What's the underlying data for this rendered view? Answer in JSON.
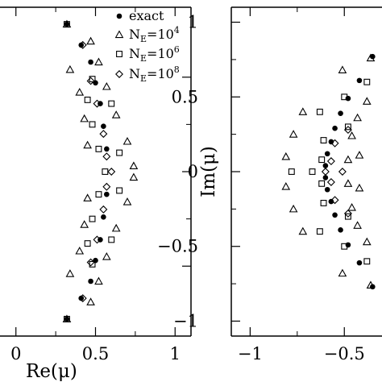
{
  "chart_data": [
    {
      "type": "scatter",
      "xlabel": "Re(μ)",
      "ylabel": "",
      "xlim": [
        -0.1,
        1.1
      ],
      "ylim": [
        -0.87,
        0.87
      ],
      "xticks": [
        {
          "value": 0,
          "label": "0"
        },
        {
          "value": 0.5,
          "label": "0.5"
        },
        {
          "value": 1,
          "label": "1"
        }
      ],
      "legend": {
        "position": "top-right",
        "entries": [
          {
            "marker": "filled-circle",
            "label": "exact"
          },
          {
            "marker": "open-triangle",
            "label": "N",
            "sub": "E",
            "eq": "=10",
            "sup": "4"
          },
          {
            "marker": "open-square",
            "label": "N",
            "sub": "E",
            "eq": "=10",
            "sup": "6"
          },
          {
            "marker": "open-diamond",
            "label": "N",
            "sub": "E",
            "eq": "=10",
            "sup": "8"
          }
        ]
      },
      "series": [
        {
          "marker": "filled-circle",
          "points": [
            [
              0.32,
              0.78
            ],
            [
              0.32,
              -0.78
            ],
            [
              0.41,
              0.67
            ],
            [
              0.41,
              -0.67
            ],
            [
              0.47,
              0.58
            ],
            [
              0.47,
              -0.58
            ],
            [
              0.5,
              0.47
            ],
            [
              0.5,
              -0.47
            ],
            [
              0.53,
              0.36
            ],
            [
              0.53,
              -0.36
            ],
            [
              0.55,
              0.24
            ],
            [
              0.55,
              -0.24
            ],
            [
              0.57,
              0.12
            ],
            [
              0.57,
              -0.12
            ]
          ]
        },
        {
          "marker": "open-triangle",
          "points": [
            [
              0.32,
              0.78
            ],
            [
              0.32,
              -0.78
            ],
            [
              0.34,
              0.54
            ],
            [
              0.34,
              -0.54
            ],
            [
              0.4,
              0.42
            ],
            [
              0.4,
              -0.42
            ],
            [
              0.43,
              0.28
            ],
            [
              0.43,
              -0.28
            ],
            [
              0.45,
              0.14
            ],
            [
              0.45,
              -0.14
            ],
            [
              0.47,
              0.69
            ],
            [
              0.47,
              -0.69
            ],
            [
              0.52,
              0.58
            ],
            [
              0.52,
              -0.58
            ],
            [
              0.57,
              0.45
            ],
            [
              0.57,
              -0.45
            ],
            [
              0.63,
              0.3
            ],
            [
              0.63,
              -0.3
            ],
            [
              0.7,
              0.16
            ],
            [
              0.7,
              -0.16
            ],
            [
              0.74,
              0.03
            ],
            [
              0.74,
              -0.03
            ]
          ]
        },
        {
          "marker": "open-square",
          "points": [
            [
              0.32,
              0.78
            ],
            [
              0.32,
              -0.78
            ],
            [
              0.48,
              0.49
            ],
            [
              0.48,
              -0.49
            ],
            [
              0.45,
              0.38
            ],
            [
              0.45,
              -0.38
            ],
            [
              0.48,
              0.25
            ],
            [
              0.48,
              -0.25
            ],
            [
              0.52,
              0.12
            ],
            [
              0.52,
              -0.12
            ],
            [
              0.56,
              0.0
            ],
            [
              0.6,
              0.36
            ],
            [
              0.6,
              -0.36
            ],
            [
              0.65,
              0.1
            ],
            [
              0.65,
              -0.1
            ]
          ]
        },
        {
          "marker": "open-diamond",
          "points": [
            [
              0.42,
              0.67
            ],
            [
              0.42,
              -0.67
            ],
            [
              0.47,
              0.48
            ],
            [
              0.47,
              -0.48
            ],
            [
              0.51,
              0.36
            ],
            [
              0.51,
              -0.36
            ],
            [
              0.55,
              0.2
            ],
            [
              0.55,
              -0.2
            ],
            [
              0.57,
              0.08
            ],
            [
              0.57,
              -0.08
            ],
            [
              0.6,
              0.0
            ]
          ]
        }
      ]
    },
    {
      "type": "scatter",
      "xlabel": "",
      "ylabel": "Im(μ)",
      "xlim": [
        -1.1,
        -0.3
      ],
      "ylim": [
        -1.1,
        1.1
      ],
      "xticks": [
        {
          "value": -1,
          "label": "−1"
        },
        {
          "value": -0.5,
          "label": "−0.5"
        }
      ],
      "yticks": [
        {
          "value": 1,
          "label": "1"
        },
        {
          "value": 0.5,
          "label": "0.5"
        },
        {
          "value": 0,
          "label": "0"
        },
        {
          "value": -0.5,
          "label": "−0.5"
        },
        {
          "value": -1,
          "label": "−1"
        }
      ],
      "series": [
        {
          "marker": "filled-circle",
          "points": [
            [
              -0.35,
              0.77
            ],
            [
              -0.35,
              -0.77
            ],
            [
              -0.42,
              0.61
            ],
            [
              -0.42,
              -0.61
            ],
            [
              -0.48,
              0.49
            ],
            [
              -0.48,
              -0.49
            ],
            [
              -0.52,
              0.39
            ],
            [
              -0.52,
              -0.39
            ],
            [
              -0.55,
              0.29
            ],
            [
              -0.55,
              -0.29
            ],
            [
              -0.57,
              0.2
            ],
            [
              -0.57,
              -0.2
            ],
            [
              -0.59,
              0.12
            ],
            [
              -0.59,
              -0.12
            ],
            [
              -0.6,
              0.04
            ],
            [
              -0.6,
              -0.04
            ]
          ]
        },
        {
          "marker": "open-triangle",
          "points": [
            [
              -0.36,
              0.76
            ],
            [
              -0.36,
              -0.76
            ],
            [
              -0.38,
              0.47
            ],
            [
              -0.38,
              -0.47
            ],
            [
              -0.43,
              0.36
            ],
            [
              -0.43,
              -0.36
            ],
            [
              -0.46,
              0.24
            ],
            [
              -0.46,
              -0.24
            ],
            [
              -0.48,
              0.08
            ],
            [
              -0.48,
              -0.08
            ],
            [
              -0.51,
              0.68
            ],
            [
              -0.51,
              -0.68
            ],
            [
              -0.72,
              0.4
            ],
            [
              -0.72,
              -0.4
            ],
            [
              -0.77,
              0.25
            ],
            [
              -0.77,
              -0.25
            ],
            [
              -0.81,
              0.1
            ],
            [
              -0.81,
              -0.1
            ],
            [
              -0.42,
              0.11
            ],
            [
              -0.42,
              -0.11
            ]
          ]
        },
        {
          "marker": "open-square",
          "points": [
            [
              -0.38,
              0.6
            ],
            [
              -0.38,
              -0.6
            ],
            [
              -0.5,
              0.5
            ],
            [
              -0.5,
              -0.5
            ],
            [
              -0.48,
              0.3
            ],
            [
              -0.48,
              -0.3
            ],
            [
              -0.63,
              0.4
            ],
            [
              -0.63,
              -0.4
            ],
            [
              -0.61,
              0.21
            ],
            [
              -0.61,
              -0.21
            ],
            [
              -0.62,
              0.08
            ],
            [
              -0.62,
              -0.08
            ],
            [
              -0.67,
              0.0
            ],
            [
              -0.78,
              0.0
            ]
          ]
        },
        {
          "marker": "open-diamond",
          "points": [
            [
              -0.48,
              0.28
            ],
            [
              -0.48,
              -0.28
            ],
            [
              -0.55,
              0.19
            ],
            [
              -0.55,
              -0.19
            ],
            [
              -0.57,
              0.07
            ],
            [
              -0.57,
              -0.07
            ],
            [
              -0.6,
              0.0
            ],
            [
              -0.51,
              0.0
            ]
          ]
        }
      ]
    }
  ]
}
